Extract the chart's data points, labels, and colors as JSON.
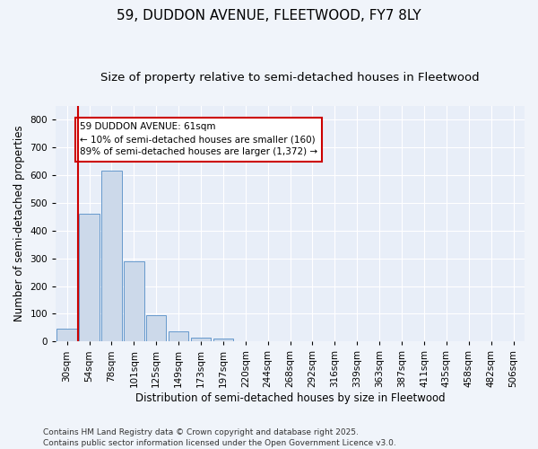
{
  "title1": "59, DUDDON AVENUE, FLEETWOOD, FY7 8LY",
  "title2": "Size of property relative to semi-detached houses in Fleetwood",
  "xlabel": "Distribution of semi-detached houses by size in Fleetwood",
  "ylabel": "Number of semi-detached properties",
  "bar_color": "#ccd9ea",
  "bar_edge_color": "#6699cc",
  "vline_color": "#cc0000",
  "vline_x": 0.5,
  "annotation_text": "59 DUDDON AVENUE: 61sqm\n← 10% of semi-detached houses are smaller (160)\n89% of semi-detached houses are larger (1,372) →",
  "annotation_box_color": "#cc0000",
  "categories": [
    "30sqm",
    "54sqm",
    "78sqm",
    "101sqm",
    "125sqm",
    "149sqm",
    "173sqm",
    "197sqm",
    "220sqm",
    "244sqm",
    "268sqm",
    "292sqm",
    "316sqm",
    "339sqm",
    "363sqm",
    "387sqm",
    "411sqm",
    "435sqm",
    "458sqm",
    "482sqm",
    "506sqm"
  ],
  "values": [
    45,
    460,
    615,
    290,
    95,
    35,
    15,
    10,
    0,
    0,
    0,
    0,
    0,
    0,
    0,
    0,
    0,
    0,
    0,
    0,
    0
  ],
  "ylim": [
    0,
    850
  ],
  "yticks": [
    0,
    100,
    200,
    300,
    400,
    500,
    600,
    700,
    800
  ],
  "plot_bg_color": "#e8eef8",
  "fig_bg_color": "#f0f4fa",
  "grid_color": "#ffffff",
  "footer": "Contains HM Land Registry data © Crown copyright and database right 2025.\nContains public sector information licensed under the Open Government Licence v3.0.",
  "title_fontsize": 11,
  "subtitle_fontsize": 9.5,
  "axis_label_fontsize": 8.5,
  "tick_fontsize": 7.5,
  "footer_fontsize": 6.5,
  "annot_fontsize": 7.5
}
